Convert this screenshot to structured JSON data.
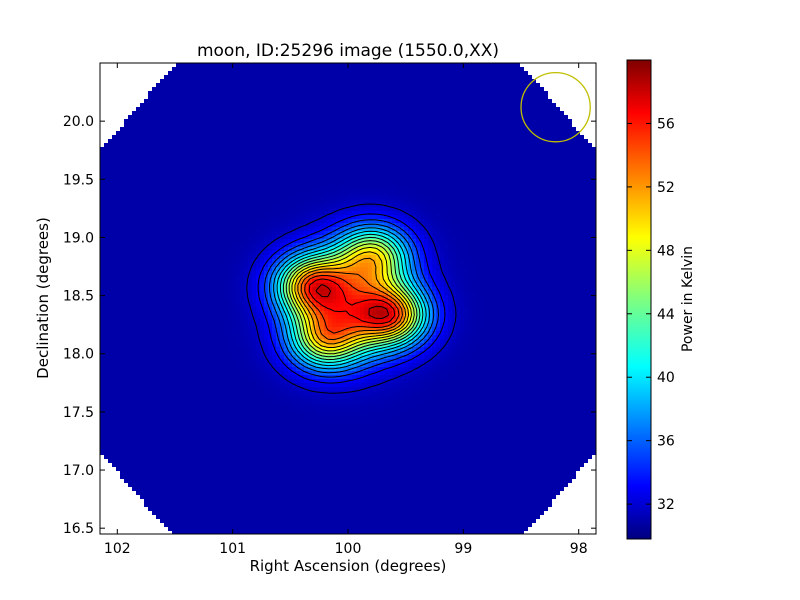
{
  "chart_data": {
    "type": "heatmap",
    "title": "moon, ID:25296 image (1550.0,XX)",
    "xlabel": "Right Ascension (degrees)",
    "ylabel": "Declination (degrees)",
    "xlim": [
      102.15,
      97.85
    ],
    "ylim": [
      16.45,
      20.5
    ],
    "x_ticks": [
      102,
      101,
      100,
      99,
      98
    ],
    "x_tick_labels": [
      "102",
      "101",
      "100",
      "99",
      "98"
    ],
    "y_ticks": [
      16.5,
      17.0,
      17.5,
      18.0,
      18.5,
      19.0,
      19.5,
      20.0
    ],
    "y_tick_labels": [
      "16.5",
      "17.0",
      "17.5",
      "18.0",
      "18.5",
      "19.0",
      "19.5",
      "20.0"
    ],
    "colorbar": {
      "label": "Power in Kelvin",
      "range": [
        29.8,
        60
      ],
      "ticks": [
        32,
        36,
        40,
        44,
        48,
        52,
        56
      ],
      "tick_labels": [
        "32",
        "36",
        "40",
        "44",
        "48",
        "52",
        "56"
      ],
      "colormap": "jet"
    },
    "background_level": 31,
    "peaks": [
      {
        "ra": 100.32,
        "dec": 18.59,
        "value": 59
      },
      {
        "ra": 99.62,
        "dec": 18.33,
        "value": 60
      },
      {
        "ra": 99.78,
        "dec": 18.85,
        "value": 54
      },
      {
        "ra": 100.2,
        "dec": 18.12,
        "value": 53
      },
      {
        "ra": 99.98,
        "dec": 18.43,
        "value": 55
      }
    ],
    "beam_circle": {
      "ra": 98.2,
      "dec": 20.12,
      "radius_deg": 0.3,
      "color": "#bfbf00"
    },
    "contour_color": "#000000"
  }
}
